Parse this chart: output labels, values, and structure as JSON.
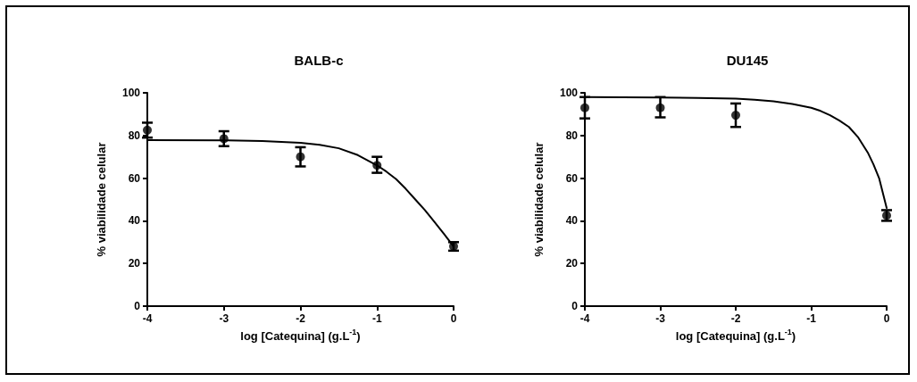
{
  "chart_data": [
    {
      "type": "scatter",
      "title": "BALB-c",
      "xlabel": "log [Catequina] (g.L$^{-1}$)",
      "ylabel": "% viabilidade celular",
      "xlim": [
        -4,
        0
      ],
      "xticks": [
        -4,
        -3,
        -2,
        -1,
        0
      ],
      "ylim": [
        0,
        100
      ],
      "yticks": [
        0,
        20,
        40,
        60,
        80,
        100
      ],
      "series": [
        {
          "type": "scatter",
          "color": "#000000",
          "marker": "circle",
          "x": [
            -4,
            -3,
            -2,
            -1,
            0
          ],
          "values": [
            82.5,
            78.5,
            70,
            66,
            28
          ],
          "errors": [
            [
              79,
              86
            ],
            [
              75,
              82
            ],
            [
              65.5,
              74.5
            ],
            [
              62.5,
              70
            ],
            [
              26,
              30
            ]
          ]
        },
        {
          "type": "line",
          "color": "#000000",
          "marker": "none",
          "line_style": "solid",
          "x": [
            -4,
            -3,
            -2.5,
            -2,
            -1.75,
            -1.5,
            -1.25,
            -1,
            -0.875,
            -0.75,
            -0.625,
            -0.5,
            -0.375,
            -0.25,
            -0.125,
            0
          ],
          "values": [
            77.8,
            77.7,
            77.4,
            76.6,
            75.6,
            74,
            70.8,
            66,
            63,
            59.5,
            55,
            50,
            45,
            39.5,
            33.8,
            28
          ]
        }
      ]
    },
    {
      "type": "scatter",
      "title": "DU145",
      "xlabel": "log [Catequina] (g.L$^{-1}$)",
      "ylabel": "% viabilidade celular",
      "xlim": [
        -4,
        0
      ],
      "xticks": [
        -4,
        -3,
        -2,
        -1,
        0
      ],
      "ylim": [
        0,
        100
      ],
      "yticks": [
        0,
        20,
        40,
        60,
        80,
        100
      ],
      "series": [
        {
          "type": "scatter",
          "color": "#000000",
          "marker": "circle",
          "x": [
            -4,
            -3,
            -2,
            0
          ],
          "values": [
            93,
            93,
            89.5,
            42.5
          ],
          "errors": [
            [
              88,
              98
            ],
            [
              88.5,
              98
            ],
            [
              84,
              95
            ],
            [
              40,
              45
            ]
          ]
        },
        {
          "type": "line",
          "color": "#000000",
          "marker": "none",
          "line_style": "solid",
          "x": [
            -4,
            -3,
            -2.5,
            -2,
            -1.75,
            -1.5,
            -1.25,
            -1,
            -0.875,
            -0.75,
            -0.625,
            -0.5,
            -0.375,
            -0.25,
            -0.175,
            -0.1,
            -0.05,
            0
          ],
          "values": [
            98,
            97.8,
            97.6,
            97.3,
            96.8,
            96,
            94.8,
            93,
            91.5,
            89.5,
            87,
            84,
            79,
            72,
            66.5,
            60,
            53,
            46
          ]
        }
      ]
    }
  ]
}
